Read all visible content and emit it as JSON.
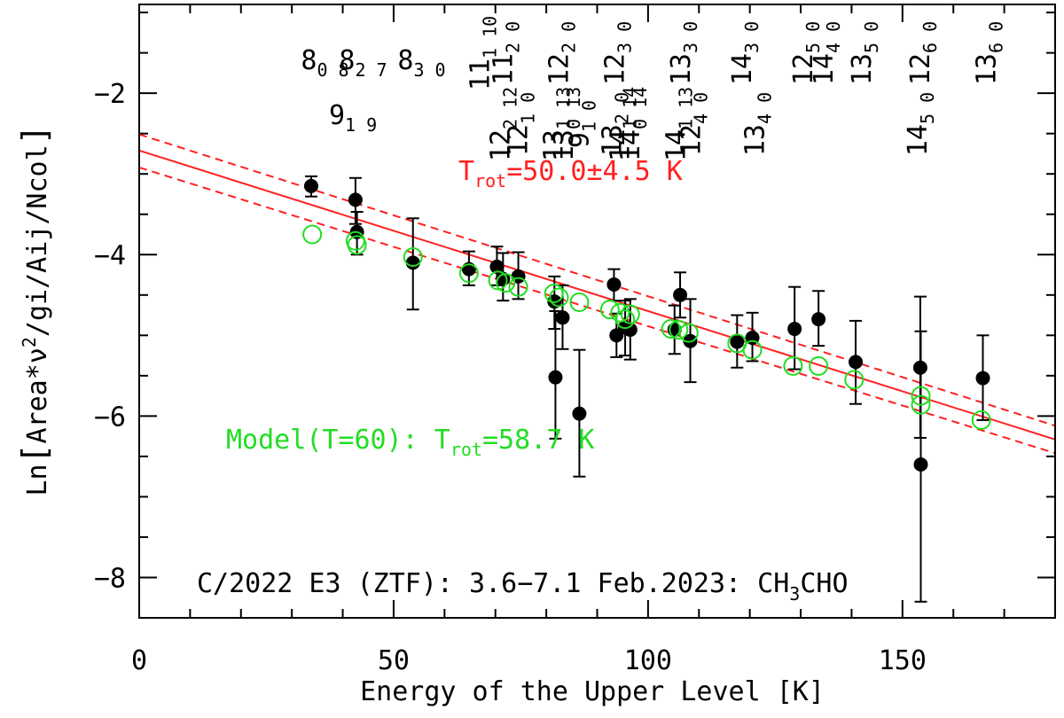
{
  "chart_data": {
    "type": "scatter",
    "title": "C/2022 E3 (ZTF): 3.6−7.1 Feb.2023: CH₃CHO",
    "title_text": "C/2022 E3 (ZTF): 3.6−7.1 Feb.2023: CH",
    "title_sub": "3",
    "title_tail": "CHO",
    "xlabel": "Energy of the Upper Level [K]",
    "ylabel": "Ln[Area*ν²/gi/Aij/Ncol]",
    "ylabel_parts": {
      "pre": "Ln",
      "lb": "[",
      "body": "Area*ν",
      "sup": "2",
      "rest": "/gi/Aij/Ncol",
      "rb": "]"
    },
    "xlim": [
      0,
      180
    ],
    "ylim": [
      -8.5,
      -0.9
    ],
    "xticks": [
      0,
      50,
      100,
      150
    ],
    "xtick_labels": [
      "0",
      "50",
      "100",
      "150"
    ],
    "yticks": [
      -8,
      -6,
      -4,
      -2
    ],
    "ytick_labels": [
      "−8",
      "−6",
      "−4",
      "−2"
    ],
    "fit": {
      "label_main": "T",
      "label_sub": "rot",
      "label_value": "=50.0±4.5 K",
      "line": {
        "x": [
          0,
          180
        ],
        "y": [
          -2.71,
          -6.29
        ]
      },
      "upper": {
        "x": [
          0,
          180
        ],
        "y": [
          -2.51,
          -6.12
        ]
      },
      "lower": {
        "x": [
          0,
          180
        ],
        "y": [
          -2.92,
          -6.46
        ]
      },
      "color": "#ff2020"
    },
    "model": {
      "label_main": "Model(T=60): T",
      "label_sub": "rot",
      "label_value": "=58.7 K",
      "color": "#22dd22",
      "points": [
        {
          "x": 34,
          "y": -3.75
        },
        {
          "x": 42.5,
          "y": -3.83
        },
        {
          "x": 42.8,
          "y": -3.88
        },
        {
          "x": 53.8,
          "y": -4.03
        },
        {
          "x": 64.8,
          "y": -4.23
        },
        {
          "x": 70.5,
          "y": -4.32
        },
        {
          "x": 72,
          "y": -4.35
        },
        {
          "x": 74.5,
          "y": -4.4
        },
        {
          "x": 81.5,
          "y": -4.48
        },
        {
          "x": 82.5,
          "y": -4.53
        },
        {
          "x": 86.5,
          "y": -4.59
        },
        {
          "x": 92.5,
          "y": -4.68
        },
        {
          "x": 94.5,
          "y": -4.72
        },
        {
          "x": 95.5,
          "y": -4.8
        },
        {
          "x": 96.5,
          "y": -4.74
        },
        {
          "x": 104.5,
          "y": -4.92
        },
        {
          "x": 106,
          "y": -4.93
        },
        {
          "x": 108,
          "y": -4.97
        },
        {
          "x": 117.5,
          "y": -5.1
        },
        {
          "x": 120.5,
          "y": -5.18
        },
        {
          "x": 128.5,
          "y": -5.38
        },
        {
          "x": 133.5,
          "y": -5.38
        },
        {
          "x": 140.5,
          "y": -5.55
        },
        {
          "x": 153.6,
          "y": -5.75
        },
        {
          "x": 153.6,
          "y": -5.86
        },
        {
          "x": 165.5,
          "y": -6.05
        }
      ]
    },
    "observed": {
      "color": "#000000",
      "points": [
        {
          "x": 33.8,
          "y": -3.15,
          "lo": -3.28,
          "hi": -3.03
        },
        {
          "x": 42.5,
          "y": -3.32,
          "lo": -3.62,
          "hi": -3.05
        },
        {
          "x": 42.8,
          "y": -3.72,
          "lo": -4.0,
          "hi": -3.47
        },
        {
          "x": 53.8,
          "y": -4.1,
          "lo": -4.68,
          "hi": -3.55
        },
        {
          "x": 64.8,
          "y": -4.18,
          "lo": -4.38,
          "hi": -3.96
        },
        {
          "x": 70.3,
          "y": -4.15,
          "lo": -4.38,
          "hi": -3.9
        },
        {
          "x": 71.5,
          "y": -4.3,
          "lo": -4.57,
          "hi": -3.98
        },
        {
          "x": 74.5,
          "y": -4.27,
          "lo": -4.55,
          "hi": -3.97
        },
        {
          "x": 81.6,
          "y": -4.58,
          "lo": -4.92,
          "hi": -4.27
        },
        {
          "x": 81.8,
          "y": -5.52,
          "lo": -6.28,
          "hi": -4.7
        },
        {
          "x": 83.2,
          "y": -4.78,
          "lo": -5.17,
          "hi": -4.38
        },
        {
          "x": 86.5,
          "y": -5.97,
          "lo": -6.75,
          "hi": -5.18
        },
        {
          "x": 93.3,
          "y": -4.37,
          "lo": -4.57,
          "hi": -4.18
        },
        {
          "x": 93.8,
          "y": -5.0,
          "lo": -5.27,
          "hi": -4.73
        },
        {
          "x": 95.5,
          "y": -4.9,
          "lo": -5.25,
          "hi": -4.57
        },
        {
          "x": 96.5,
          "y": -4.93,
          "lo": -5.3,
          "hi": -4.55
        },
        {
          "x": 105.2,
          "y": -4.93,
          "lo": -5.23,
          "hi": -4.63
        },
        {
          "x": 106.3,
          "y": -4.5,
          "lo": -4.78,
          "hi": -4.22
        },
        {
          "x": 108.3,
          "y": -5.07,
          "lo": -5.58,
          "hi": -4.55
        },
        {
          "x": 117.5,
          "y": -5.08,
          "lo": -5.4,
          "hi": -4.75
        },
        {
          "x": 120.5,
          "y": -5.03,
          "lo": -5.32,
          "hi": -4.72
        },
        {
          "x": 128.8,
          "y": -4.92,
          "lo": -5.42,
          "hi": -4.4
        },
        {
          "x": 133.5,
          "y": -4.8,
          "lo": -5.13,
          "hi": -4.45
        },
        {
          "x": 140.8,
          "y": -5.33,
          "lo": -5.85,
          "hi": -4.82
        },
        {
          "x": 153.5,
          "y": -5.4,
          "lo": -6.27,
          "hi": -4.52
        },
        {
          "x": 153.6,
          "y": -6.6,
          "lo": -8.3,
          "hi": -4.95
        },
        {
          "x": 165.8,
          "y": -5.53,
          "lo": -6.05,
          "hi": -5.0
        }
      ]
    },
    "transitions": [
      {
        "x": 36.5,
        "row": "top",
        "main": "8",
        "sub": "0 8"
      },
      {
        "x": 44.0,
        "row": "top",
        "main": "8",
        "sub": "2 7"
      },
      {
        "x": 55.5,
        "row": "top",
        "main": "8",
        "sub": "3 0"
      },
      {
        "x": 42.0,
        "row": "mid",
        "main": "9",
        "sub": "1 9"
      },
      {
        "x": 67.0,
        "row": "rot",
        "main": "11",
        "sub": "1 10"
      },
      {
        "x": 71.5,
        "row": "rot",
        "main": "11",
        "sub": "2 0"
      },
      {
        "x": 71.0,
        "row": "rot2",
        "main": "12",
        "sub": "2 12"
      },
      {
        "x": 74.5,
        "row": "rot2",
        "main": "12",
        "sub": "1 0"
      },
      {
        "x": 82.5,
        "row": "rot",
        "main": "12",
        "sub": "2 0"
      },
      {
        "x": 81.5,
        "row": "rot2",
        "main": "13",
        "sub": "1 13"
      },
      {
        "x": 83.5,
        "row": "rot2",
        "main": "13",
        "sub": "0 13"
      },
      {
        "x": 86.5,
        "row": "rot2",
        "main": "9",
        "sub": "1 0"
      },
      {
        "x": 93.5,
        "row": "rot",
        "main": "12",
        "sub": "3 0"
      },
      {
        "x": 94.5,
        "row": "rot2",
        "main": "14",
        "sub": "1 14"
      },
      {
        "x": 96.5,
        "row": "rot2",
        "main": "14",
        "sub": "0 14"
      },
      {
        "x": 93.0,
        "row": "rot2",
        "main": "13",
        "sub": "2 0"
      },
      {
        "x": 106.5,
        "row": "rot",
        "main": "13",
        "sub": "3 0"
      },
      {
        "x": 105.5,
        "row": "rot2",
        "main": "14",
        "sub": "1 13"
      },
      {
        "x": 108.5,
        "row": "rot2",
        "main": "12",
        "sub": "4 0"
      },
      {
        "x": 118.5,
        "row": "rot",
        "main": "14",
        "sub": "3 0"
      },
      {
        "x": 121.0,
        "row": "rot2",
        "main": "13",
        "sub": "4 0"
      },
      {
        "x": 130.5,
        "row": "rot",
        "main": "12",
        "sub": "5 0"
      },
      {
        "x": 134.5,
        "row": "rot",
        "main": "14",
        "sub": "4 0"
      },
      {
        "x": 142.0,
        "row": "rot",
        "main": "13",
        "sub": "5 0"
      },
      {
        "x": 153.5,
        "row": "rot",
        "main": "12",
        "sub": "6 0"
      },
      {
        "x": 153.0,
        "row": "rot2",
        "main": "14",
        "sub": "5 0"
      },
      {
        "x": 166.5,
        "row": "rot",
        "main": "13",
        "sub": "6 0"
      }
    ]
  }
}
